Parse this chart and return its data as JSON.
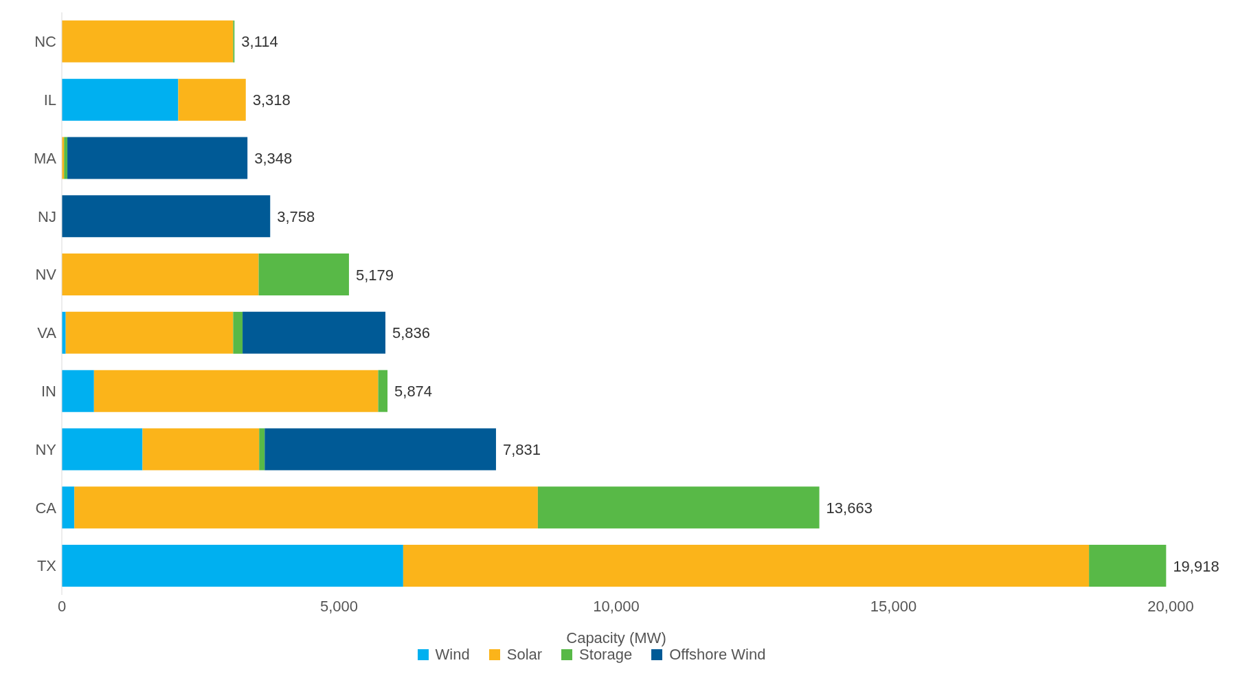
{
  "chart_data": {
    "type": "bar",
    "orientation": "horizontal",
    "stacked": true,
    "xlabel": "Capacity (MW)",
    "categories": [
      "NC",
      "IL",
      "MA",
      "NJ",
      "NV",
      "VA",
      "IN",
      "NY",
      "CA",
      "TX"
    ],
    "series": [
      {
        "name": "Wind",
        "color": "#00b0f0",
        "values": [
          null,
          2100,
          null,
          null,
          null,
          70,
          580,
          1455,
          226,
          6157
        ]
      },
      {
        "name": "Solar",
        "color": "#fbb41a",
        "values": [
          3090,
          1218,
          40,
          null,
          3550,
          3020,
          5126,
          2104,
          8360,
          12370
        ]
      },
      {
        "name": "Storage",
        "color": "#58b947",
        "values": [
          24,
          null,
          60,
          null,
          1629,
          170,
          168,
          100,
          5077,
          1391
        ]
      },
      {
        "name": "Offshore Wind",
        "color": "#005a96",
        "values": [
          null,
          null,
          3248,
          3758,
          null,
          2576,
          null,
          4172,
          null,
          null
        ]
      }
    ],
    "totals": [
      "3,114",
      "3,318",
      "3,348",
      "3,758",
      "5,179",
      "5,836",
      "5,874",
      "7,831",
      "13,663",
      "19,918"
    ],
    "xlim": [
      0,
      20000
    ],
    "xticks": [
      0,
      {
        "value": 5000,
        "label": "5,000"
      },
      {
        "value": 10000,
        "label": "10,000"
      },
      {
        "value": 15000,
        "label": "15,000"
      },
      {
        "value": 20000,
        "label": "20,000"
      }
    ],
    "grid": false,
    "legend": "bottom"
  }
}
